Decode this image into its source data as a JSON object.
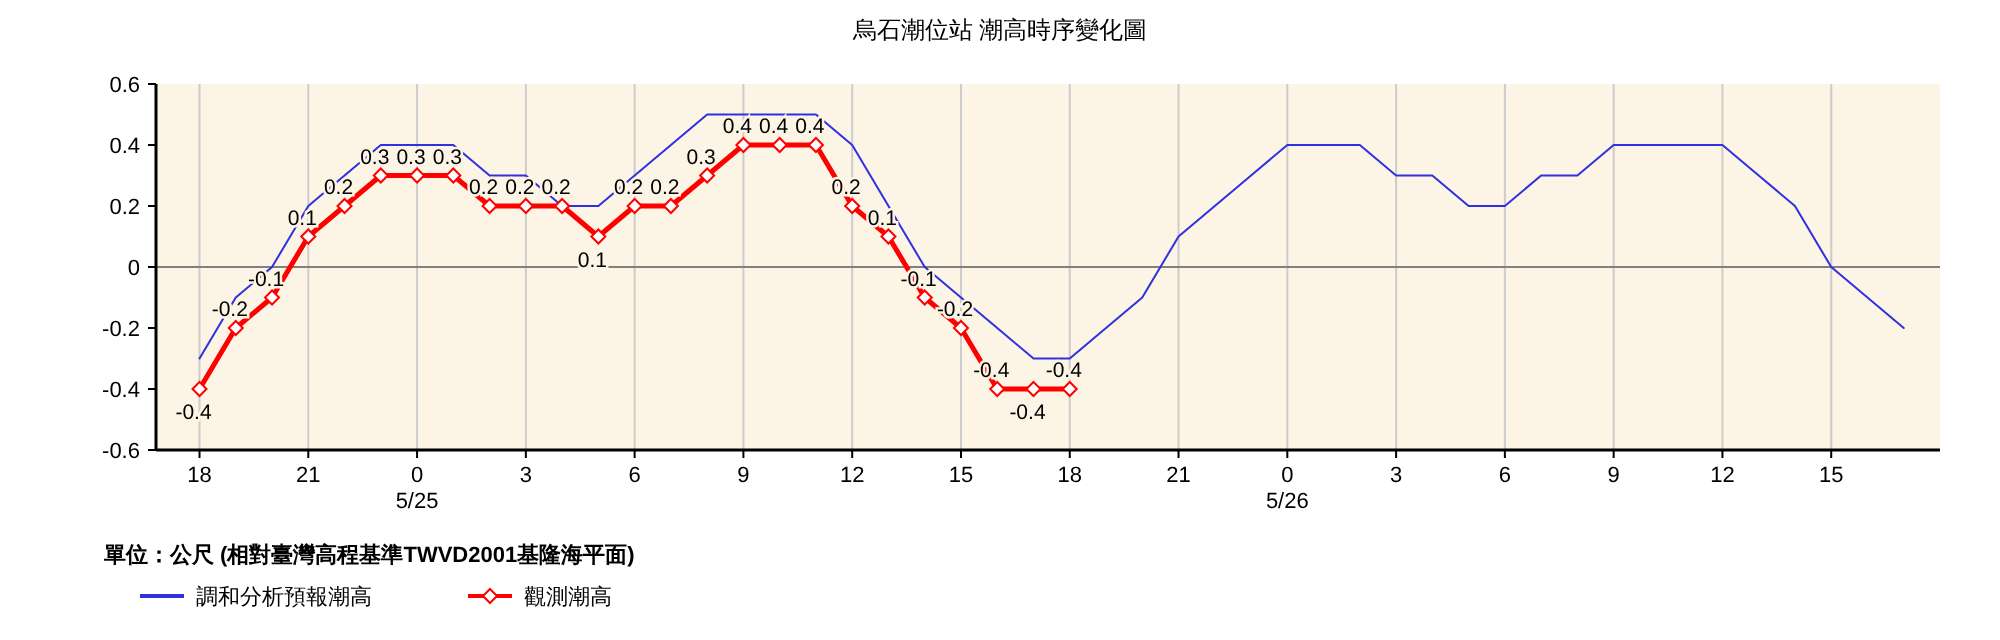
{
  "chart_data": {
    "type": "line",
    "title": "烏石潮位站 潮高時序變化圖",
    "annotations": [
      "單位：公尺 (相對臺灣高程基準TWVD2001基隆海平面)"
    ],
    "xlim": [
      "--05-24T16:48",
      "--05-26T18:00"
    ],
    "ylim": [
      -0.6,
      0.6
    ],
    "xticks": [
      {
        "value": "--05-24T18:00",
        "label": "18"
      },
      {
        "value": "--05-24T21:00",
        "label": "21"
      },
      {
        "value": "--05-25T00:00",
        "label": "0\n5/25"
      },
      {
        "value": "--05-25T03:00",
        "label": "3"
      },
      {
        "value": "--05-25T06:00",
        "label": "6"
      },
      {
        "value": "--05-25T09:00",
        "label": "9"
      },
      {
        "value": "--05-25T12:00",
        "label": "12"
      },
      {
        "value": "--05-25T15:00",
        "label": "15"
      },
      {
        "value": "--05-25T18:00",
        "label": "18"
      },
      {
        "value": "--05-25T21:00",
        "label": "21"
      },
      {
        "value": "--05-26T00:00",
        "label": "0\n5/26"
      },
      {
        "value": "--05-26T03:00",
        "label": "3"
      },
      {
        "value": "--05-26T06:00",
        "label": "6"
      },
      {
        "value": "--05-26T09:00",
        "label": "9"
      },
      {
        "value": "--05-26T12:00",
        "label": "12"
      },
      {
        "value": "--05-26T15:00",
        "label": "15"
      }
    ],
    "yticks": [
      -0.6,
      -0.4,
      -0.2,
      0,
      0.2,
      0.4,
      0.6
    ],
    "grid": "x",
    "legend": "bottom",
    "ref_lines": [
      {
        "axis": "y",
        "value": 0,
        "color": "#808080"
      }
    ],
    "series": [
      {
        "name": "調和分析預報潮高",
        "color": "#3030e0",
        "marker": "none",
        "x": [
          "--05-24T18:00",
          "--05-24T19:00",
          "--05-24T20:00",
          "--05-24T21:00",
          "--05-24T22:00",
          "--05-24T23:00",
          "--05-25T00:00",
          "--05-25T01:00",
          "--05-25T02:00",
          "--05-25T03:00",
          "--05-25T04:00",
          "--05-25T05:00",
          "--05-25T06:00",
          "--05-25T07:00",
          "--05-25T08:00",
          "--05-25T09:00",
          "--05-25T10:00",
          "--05-25T11:00",
          "--05-25T12:00",
          "--05-25T13:00",
          "--05-25T14:00",
          "--05-25T15:00",
          "--05-25T16:00",
          "--05-25T17:00",
          "--05-25T18:00",
          "--05-25T19:00",
          "--05-25T20:00",
          "--05-25T21:00",
          "--05-25T22:00",
          "--05-25T23:00",
          "--05-26T00:00",
          "--05-26T01:00",
          "--05-26T02:00",
          "--05-26T03:00",
          "--05-26T04:00",
          "--05-26T05:00",
          "--05-26T06:00",
          "--05-26T07:00",
          "--05-26T08:00",
          "--05-26T09:00",
          "--05-26T10:00",
          "--05-26T11:00",
          "--05-26T12:00",
          "--05-26T13:00",
          "--05-26T14:00",
          "--05-26T15:00",
          "--05-26T16:00",
          "--05-26T17:00"
        ],
        "values": [
          -0.3,
          -0.1,
          0,
          0.2,
          0.3,
          0.4,
          0.4,
          0.4,
          0.3,
          0.3,
          0.2,
          0.2,
          0.3,
          0.4,
          0.5,
          0.5,
          0.5,
          0.5,
          0.4,
          0.2,
          0,
          -0.1,
          -0.2,
          -0.3,
          -0.3,
          -0.2,
          -0.1,
          0.1,
          0.2,
          0.3,
          0.4,
          0.4,
          0.4,
          0.3,
          0.3,
          0.2,
          0.2,
          0.3,
          0.3,
          0.4,
          0.4,
          0.4,
          0.4,
          0.3,
          0.2,
          0,
          -0.1,
          -0.2
        ]
      },
      {
        "name": "觀測潮高",
        "color": "#ff0000",
        "marker": "diamond",
        "data_labels": true,
        "x": [
          "--05-24T18:00",
          "--05-24T19:00",
          "--05-24T20:00",
          "--05-24T21:00",
          "--05-24T22:00",
          "--05-24T23:00",
          "--05-25T00:00",
          "--05-25T01:00",
          "--05-25T02:00",
          "--05-25T03:00",
          "--05-25T04:00",
          "--05-25T05:00",
          "--05-25T06:00",
          "--05-25T07:00",
          "--05-25T08:00",
          "--05-25T09:00",
          "--05-25T10:00",
          "--05-25T11:00",
          "--05-25T12:00",
          "--05-25T13:00",
          "--05-25T14:00",
          "--05-25T15:00",
          "--05-25T16:00",
          "--05-25T17:00",
          "--05-25T18:00"
        ],
        "values": [
          -0.4,
          -0.2,
          -0.1,
          0.1,
          0.2,
          0.3,
          0.3,
          0.3,
          0.2,
          0.2,
          0.2,
          0.1,
          0.2,
          0.2,
          0.3,
          0.4,
          0.4,
          0.4,
          0.2,
          0.1,
          -0.1,
          -0.2,
          -0.4,
          -0.4,
          -0.4
        ]
      }
    ]
  }
}
